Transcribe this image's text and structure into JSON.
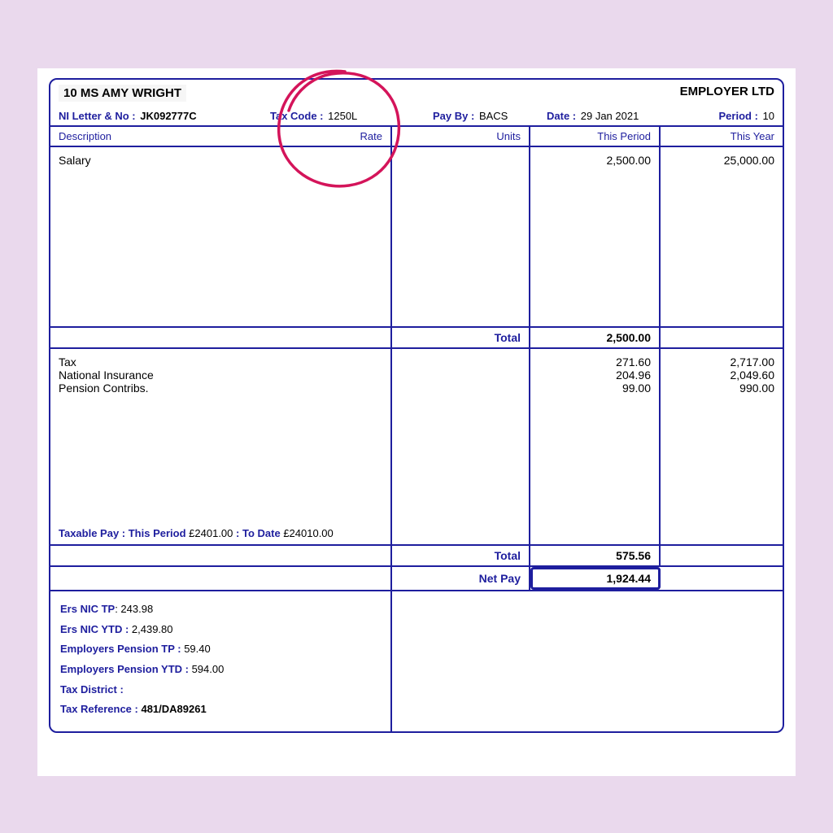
{
  "colors": {
    "page_bg": "#ead9ed",
    "sheet_bg": "#ffffff",
    "border": "#1e1e9e",
    "label": "#1e1e9e",
    "text": "#000000",
    "highlight_circle": "#d4145a"
  },
  "header": {
    "employee_name": "10 MS AMY WRIGHT",
    "employer_name": "EMPLOYER LTD",
    "ni_label": "NI Letter & No :",
    "ni_value": "JK092777C",
    "tax_code_label": "Tax Code :",
    "tax_code_value": "1250L",
    "pay_by_label": "Pay By :",
    "pay_by_value": "BACS",
    "date_label": "Date :",
    "date_value": "29 Jan 2021",
    "period_label": "Period :",
    "period_value": "10"
  },
  "columns": {
    "description": "Description",
    "rate": "Rate",
    "units": "Units",
    "this_period": "This Period",
    "this_year": "This Year"
  },
  "earnings": {
    "row": {
      "description": "Salary",
      "this_period": "2,500.00",
      "this_year": "25,000.00"
    },
    "total_label": "Total",
    "total_value": "2,500.00"
  },
  "deductions": {
    "rows": [
      {
        "description": "Tax",
        "this_period": "271.60",
        "this_year": "2,717.00"
      },
      {
        "description": "National Insurance",
        "this_period": "204.96",
        "this_year": "2,049.60"
      },
      {
        "description": "Pension Contribs.",
        "this_period": "99.00",
        "this_year": "990.00"
      }
    ],
    "taxable_label_1": "Taxable Pay : This Period",
    "taxable_value_1": "£2401.00",
    "taxable_label_2": ": To Date",
    "taxable_value_2": "£24010.00",
    "total_label": "Total",
    "total_value": "575.56"
  },
  "net": {
    "label": "Net Pay",
    "value": "1,924.44"
  },
  "footer": {
    "lines": [
      {
        "label": "Ers NIC TP",
        "sep": ": ",
        "value": "243.98",
        "bold": false
      },
      {
        "label": "Ers NIC YTD :",
        "sep": " ",
        "value": "2,439.80",
        "bold": false
      },
      {
        "label": "Employers Pension TP :",
        "sep": " ",
        "value": "59.40",
        "bold": false
      },
      {
        "label": "Employers Pension YTD :",
        "sep": " ",
        "value": "594.00",
        "bold": false
      },
      {
        "label": "Tax District  :",
        "sep": "",
        "value": "",
        "bold": false
      },
      {
        "label": "Tax Reference :",
        "sep": " ",
        "value": "481/DA89261",
        "bold": true
      }
    ]
  },
  "annotation": {
    "circle": {
      "stroke": "#d4145a",
      "stroke_width": 3
    }
  }
}
